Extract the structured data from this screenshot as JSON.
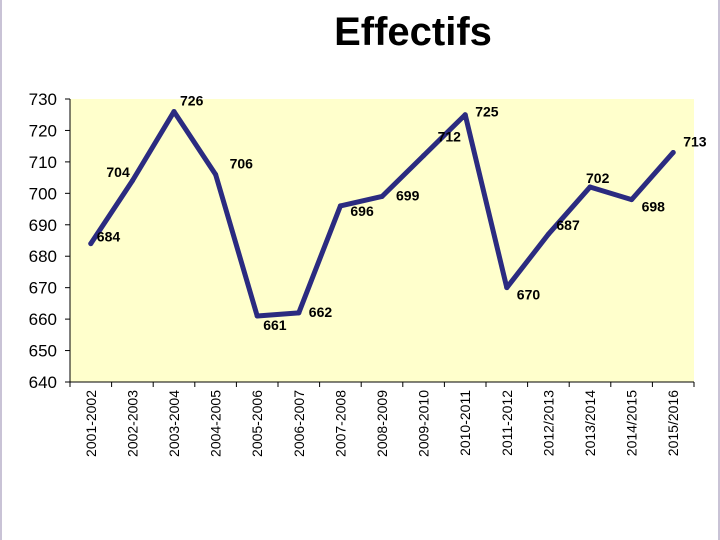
{
  "colors": {
    "plot_background": "#ffffcc",
    "line": "#2b2b80",
    "text": "#000000"
  },
  "chart_data": {
    "type": "line",
    "title": "Effectifs",
    "xlabel": "",
    "ylabel": "",
    "ylim": [
      640,
      730
    ],
    "ytick_step": 10,
    "grid": false,
    "categories": [
      "2001-2002",
      "2002-2003",
      "2003-2004",
      "2004-2005",
      "2005-2006",
      "2006-2007",
      "2007-2008",
      "2008-2009",
      "2009-2010",
      "2010-2011",
      "2011-2012",
      "2012/2013",
      "2013/2014",
      "2014/2015",
      "2015/2016"
    ],
    "values": [
      684,
      704,
      726,
      706,
      661,
      662,
      696,
      699,
      712,
      725,
      670,
      687,
      702,
      698,
      713
    ],
    "data_labels": [
      "684",
      "704",
      "726",
      "706",
      "661",
      "662",
      "696",
      "699",
      "712",
      "725",
      "670",
      "687",
      "702",
      "698",
      "713"
    ]
  }
}
